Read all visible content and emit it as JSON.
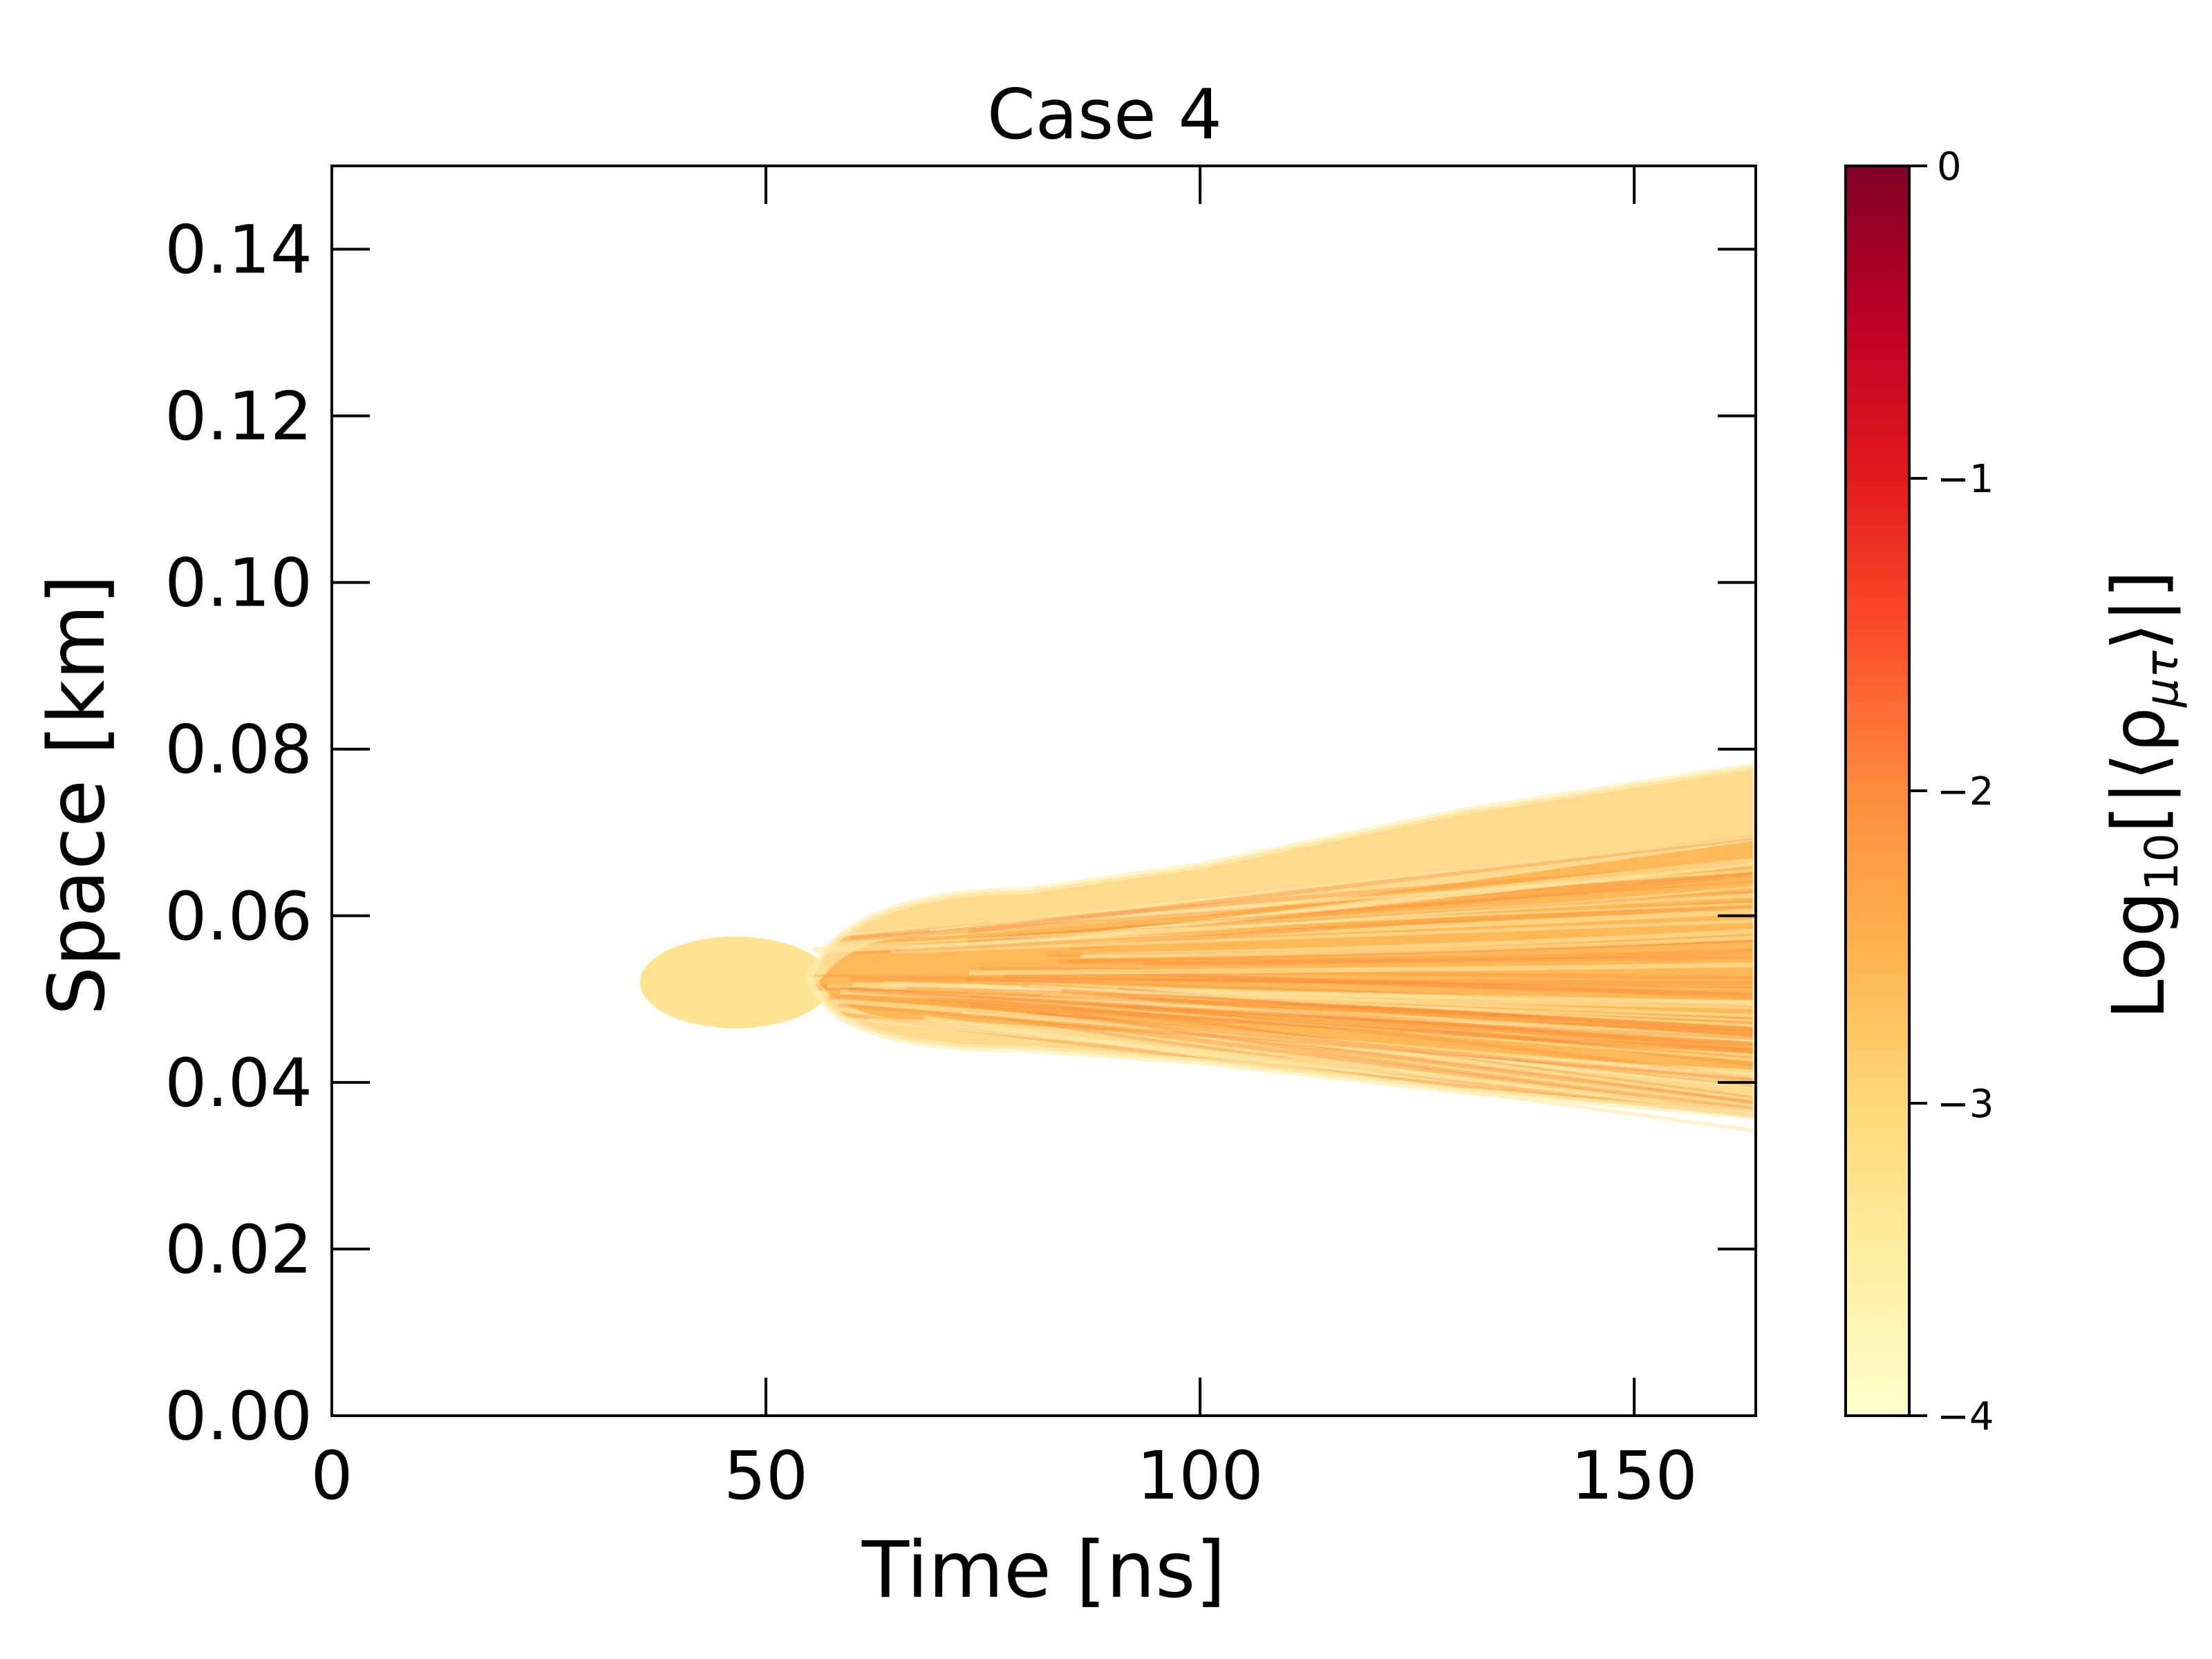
{
  "chart_data": {
    "type": "heatmap",
    "title": "Case 4",
    "xlabel": "Time [ns]",
    "ylabel": "Space [km]",
    "xlim": [
      0,
      164
    ],
    "ylim": [
      0,
      0.15
    ],
    "x_ticks": [
      0,
      50,
      100,
      150
    ],
    "x_tick_labels": [
      "0",
      "50",
      "100",
      "150"
    ],
    "y_ticks": [
      0,
      0.02,
      0.04,
      0.06,
      0.08,
      0.1,
      0.12,
      0.14
    ],
    "y_tick_labels": [
      "0.00",
      "0.02",
      "0.04",
      "0.06",
      "0.08",
      "0.10",
      "0.12",
      "0.14"
    ],
    "grid": false,
    "colorbar": {
      "label_prefix": "Log",
      "label_subscript": "10",
      "label_suffix": "[|⟨ρ",
      "label_sub2": "μτ",
      "label_end": "⟩|]",
      "range": [
        -4,
        0
      ],
      "ticks": [
        0,
        -1,
        -2,
        -3,
        -4
      ],
      "tick_labels": [
        "0",
        "−1",
        "−2",
        "−3",
        "−4"
      ],
      "colormap": "YlOrRd",
      "stops": [
        "#ffffcc",
        "#ffeda0",
        "#fed976",
        "#feb24c",
        "#fd8d3c",
        "#fc4e2a",
        "#e31a1c",
        "#bd0026",
        "#800026"
      ]
    },
    "region": {
      "description_values": [
        {
          "t": 36,
          "y_low": 0.0505,
          "y_high": 0.0515,
          "level": -3.2
        },
        {
          "t": 45,
          "y_low": 0.0465,
          "y_high": 0.0575,
          "level": -3.1
        },
        {
          "t": 55,
          "y_low": 0.0465,
          "y_high": 0.0585,
          "level": -2.4
        },
        {
          "t": 80,
          "y_low": 0.044,
          "y_high": 0.063,
          "level": -2.3
        },
        {
          "t": 100,
          "y_low": 0.0425,
          "y_high": 0.066,
          "level": -2.2
        },
        {
          "t": 130,
          "y_low": 0.039,
          "y_high": 0.0725,
          "level": -2.2
        },
        {
          "t": 164,
          "y_low": 0.036,
          "y_high": 0.078,
          "level": -2.2
        }
      ]
    }
  }
}
